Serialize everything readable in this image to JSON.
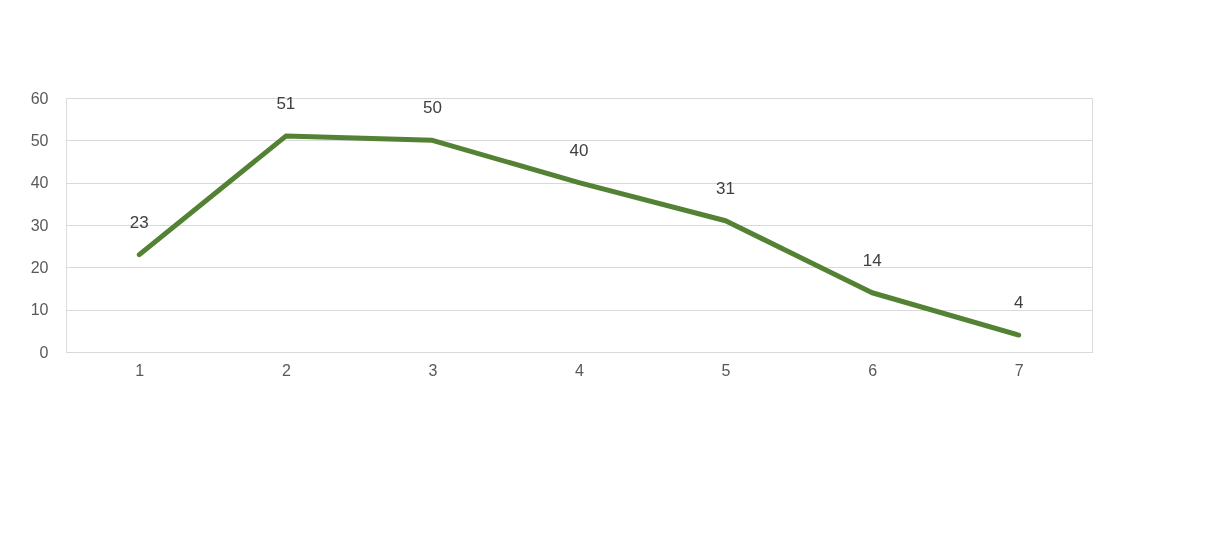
{
  "chart_data": {
    "type": "line",
    "categories": [
      "1",
      "2",
      "3",
      "4",
      "5",
      "6",
      "7"
    ],
    "series": [
      {
        "color": "#548235",
        "values": [
          23,
          51,
          50,
          40,
          31,
          14,
          4
        ]
      }
    ],
    "ylim": [
      0,
      60
    ],
    "yticks": [
      0,
      10,
      20,
      30,
      40,
      50,
      60
    ],
    "grid": "y",
    "data_labels": true,
    "marker": "none",
    "line_style": "solid"
  }
}
